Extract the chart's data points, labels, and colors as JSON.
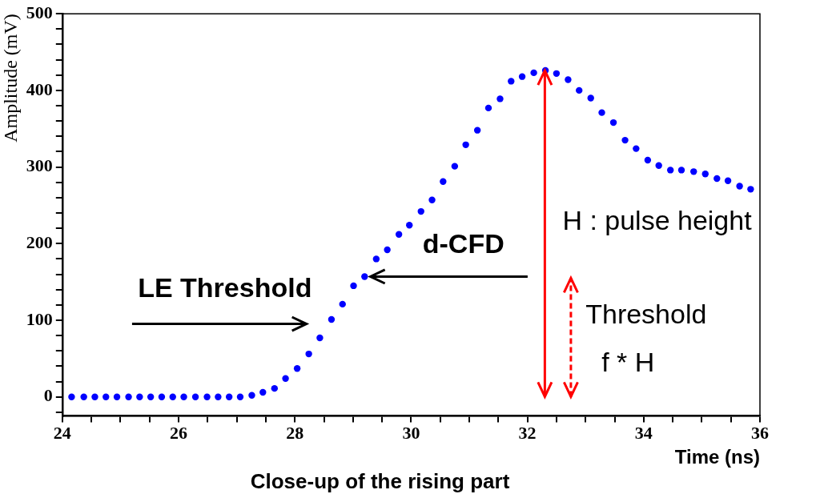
{
  "chart_data": {
    "type": "scatter",
    "title": "Close-up of the rising part",
    "xlabel": "Time (ns)",
    "ylabel": "Amplitude (mV)",
    "x": [
      24.16,
      24.37,
      24.56,
      24.75,
      24.94,
      25.14,
      25.33,
      25.52,
      25.71,
      25.9,
      26.09,
      26.29,
      26.49,
      26.68,
      26.87,
      27.06,
      27.26,
      27.45,
      27.65,
      27.84,
      28.04,
      28.24,
      28.43,
      28.63,
      28.82,
      29.01,
      29.2,
      29.4,
      29.59,
      29.79,
      29.97,
      30.17,
      30.36,
      30.55,
      30.75,
      30.94,
      31.14,
      31.33,
      31.53,
      31.72,
      31.91,
      32.11,
      32.31,
      32.5,
      32.7,
      32.89,
      33.09,
      33.28,
      33.48,
      33.68,
      33.87,
      34.07,
      34.26,
      34.46,
      34.65,
      34.86,
      35.06,
      35.26,
      35.45,
      35.65,
      35.84
    ],
    "series": [
      {
        "color": "#0000ff",
        "values": [
          0,
          0,
          0,
          0,
          0,
          0,
          0,
          0,
          0,
          0,
          0,
          0,
          0,
          0,
          0,
          0,
          2,
          6,
          11,
          24,
          37,
          56,
          77,
          101,
          121,
          145,
          157,
          180,
          192,
          212,
          224,
          242,
          257,
          281,
          301,
          329,
          348,
          377,
          389,
          412,
          418,
          423,
          426,
          422,
          414,
          400,
          390,
          371,
          358,
          335,
          324,
          309,
          302,
          296,
          296,
          294,
          291,
          285,
          282,
          275,
          271
        ]
      }
    ],
    "marker": "circle",
    "xlim": [
      24,
      36
    ],
    "xticks": [
      24,
      {
        "value": 24.5,
        "label": null
      },
      26,
      {
        "value": 25,
        "label": null
      },
      {
        "value": 25.5,
        "label": null
      },
      {
        "value": 26.5,
        "label": null
      },
      {
        "value": 27,
        "label": null
      },
      {
        "value": 27.5,
        "label": null
      },
      28,
      {
        "value": 28.5,
        "label": null
      },
      {
        "value": 29,
        "label": null
      },
      {
        "value": 29.5,
        "label": null
      },
      30,
      {
        "value": 30.5,
        "label": null
      },
      {
        "value": 31,
        "label": null
      },
      {
        "value": 31.5,
        "label": null
      },
      32,
      {
        "value": 32.5,
        "label": null
      },
      {
        "value": 33,
        "label": null
      },
      {
        "value": 33.5,
        "label": null
      },
      34,
      {
        "value": 34.5,
        "label": null
      },
      {
        "value": 35,
        "label": null
      },
      {
        "value": 35.5,
        "label": null
      },
      36
    ],
    "ylim": [
      -25,
      500
    ],
    "yticks": [
      {
        "value": -20,
        "label": null
      },
      0,
      {
        "value": 20,
        "label": null
      },
      {
        "value": 40,
        "label": null
      },
      {
        "value": 60,
        "label": null
      },
      {
        "value": 80,
        "label": null
      },
      100,
      {
        "value": 120,
        "label": null
      },
      {
        "value": 140,
        "label": null
      },
      {
        "value": 160,
        "label": null
      },
      {
        "value": 180,
        "label": null
      },
      200,
      {
        "value": 220,
        "label": null
      },
      {
        "value": 240,
        "label": null
      },
      {
        "value": 260,
        "label": null
      },
      {
        "value": 280,
        "label": null
      },
      300,
      {
        "value": 320,
        "label": null
      },
      {
        "value": 340,
        "label": null
      },
      {
        "value": 360,
        "label": null
      },
      {
        "value": 380,
        "label": null
      },
      400,
      {
        "value": 420,
        "label": null
      },
      {
        "value": 440,
        "label": null
      },
      {
        "value": 460,
        "label": null
      },
      {
        "value": 480,
        "label": null
      },
      500
    ],
    "grid": false,
    "annotations": [
      "LE Threshold",
      {
        "text": "d-CFD",
        "x": 29.3,
        "y": 157
      },
      "Threshold\nf * H"
    ],
    "ref_lines": [
      {
        "axis": "x",
        "value": 32.3,
        "label": "H : pulse height",
        "color": "#ff0000"
      }
    ]
  }
}
